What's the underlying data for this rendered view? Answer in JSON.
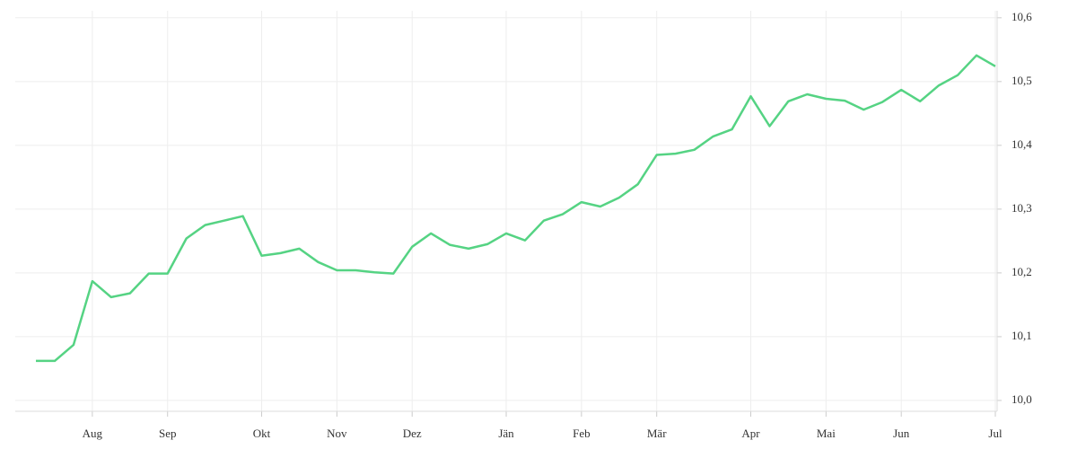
{
  "chart_data": {
    "type": "line",
    "categories": [
      null,
      null,
      null,
      "Aug",
      null,
      null,
      null,
      "Sep",
      null,
      null,
      null,
      null,
      "Okt",
      null,
      null,
      null,
      "Nov",
      null,
      null,
      null,
      "Dez",
      null,
      null,
      null,
      null,
      "Jän",
      null,
      null,
      null,
      "Feb",
      null,
      null,
      null,
      "Mär",
      null,
      null,
      null,
      null,
      "Apr",
      null,
      null,
      null,
      "Mai",
      null,
      null,
      null,
      "Jun",
      null,
      null,
      null,
      null,
      "Jul"
    ],
    "values": [
      10.062,
      10.062,
      10.087,
      10.187,
      10.162,
      10.168,
      10.199,
      10.199,
      10.254,
      10.275,
      10.282,
      10.289,
      10.227,
      10.231,
      10.238,
      10.217,
      10.204,
      10.204,
      10.201,
      10.199,
      10.241,
      10.262,
      10.244,
      10.238,
      10.245,
      10.262,
      10.251,
      10.282,
      10.292,
      10.311,
      10.304,
      10.318,
      10.339,
      10.385,
      10.387,
      10.393,
      10.414,
      10.425,
      10.477,
      10.43,
      10.469,
      10.48,
      10.473,
      10.47,
      10.456,
      10.468,
      10.487,
      10.469,
      10.494,
      10.51,
      10.541,
      10.524
    ],
    "color": "#55d383",
    "ylim": [
      9.983,
      10.611
    ],
    "yticks": [
      {
        "value": 10.0,
        "label": "10,0"
      },
      {
        "value": 10.1,
        "label": "10,1"
      },
      {
        "value": 10.2,
        "label": "10,2"
      },
      {
        "value": 10.3,
        "label": "10,3"
      },
      {
        "value": 10.4,
        "label": "10,4"
      },
      {
        "value": 10.5,
        "label": "10,5"
      },
      {
        "value": 10.6,
        "label": "10,6"
      }
    ],
    "grid": true
  }
}
